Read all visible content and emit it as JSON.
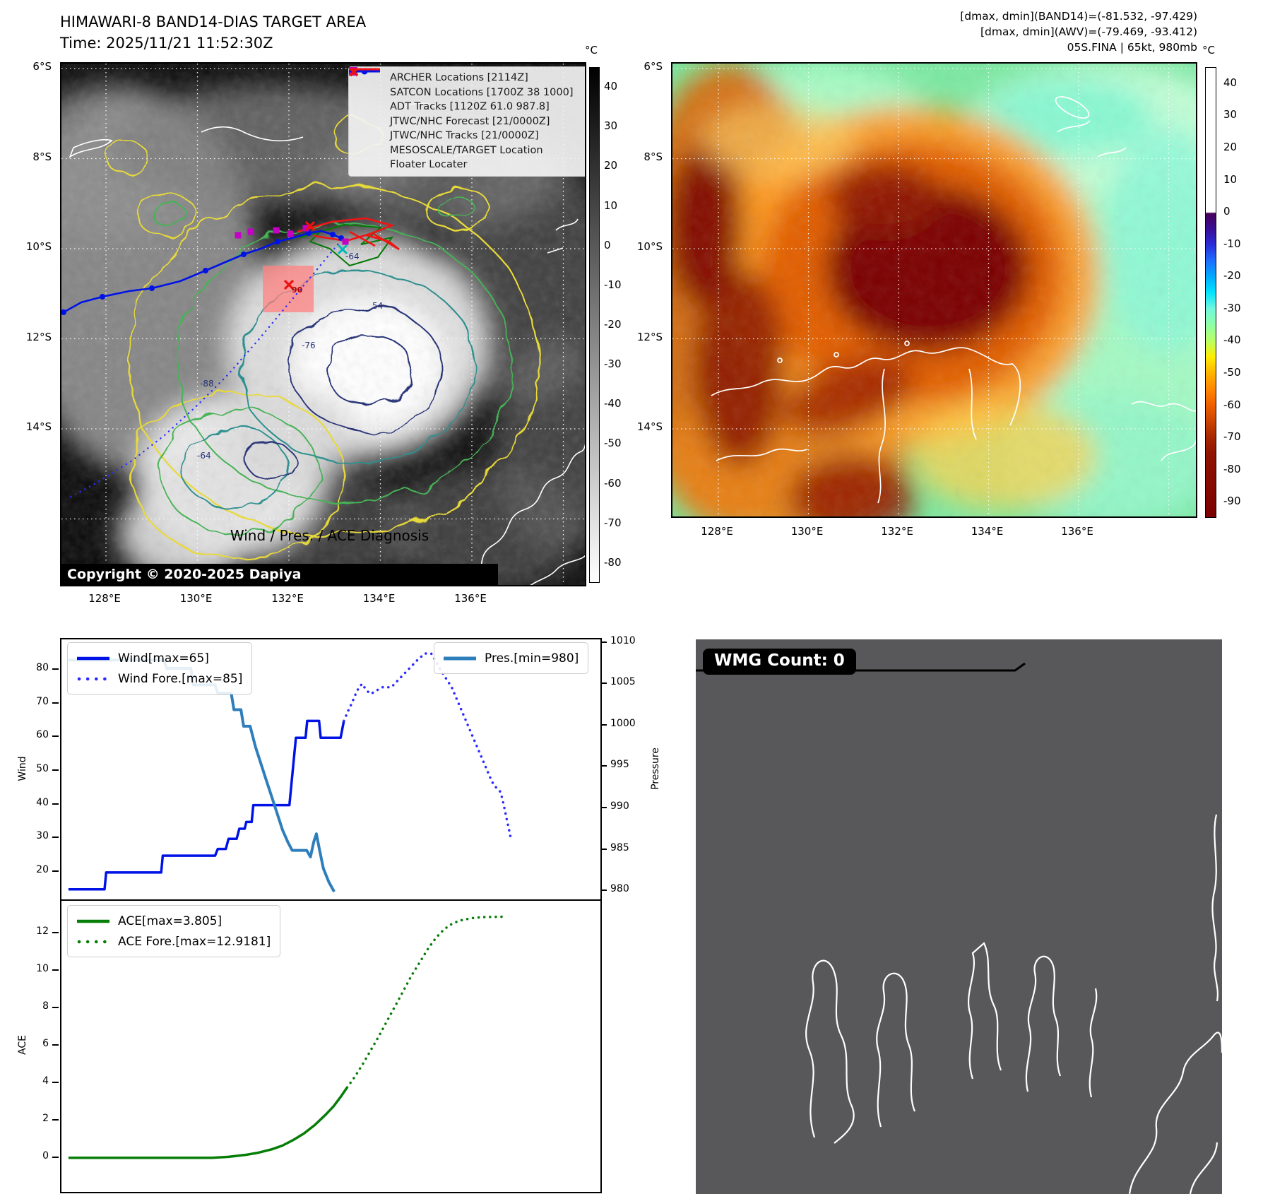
{
  "colors": {
    "wind": "#0013e6",
    "wind_forecast": "#2a2aff",
    "pressure": "#2e7ebc",
    "ace": "#067d06",
    "archer": "#c400c4",
    "satcon": "#00b8b8",
    "adt_track": "#067806",
    "mesoscale": "#ee1111",
    "floater": "#f01414",
    "wmg_panel": "#58585a"
  },
  "tl": {
    "title": "HIMAWARI-8 BAND14-DIAS TARGET AREA",
    "subtitle": "Time: 2025/11/21 11:52:30Z",
    "copyright": "Copyright © 2020-2025 Dapiya",
    "target_label": "90",
    "colorbar_unit": "°C",
    "colorbar_ticks": [
      40,
      30,
      20,
      10,
      0,
      -10,
      -20,
      -30,
      -40,
      -50,
      -60,
      -70,
      -80
    ],
    "lat_ticks": [
      "6°S",
      "8°S",
      "10°S",
      "12°S",
      "14°S"
    ],
    "lon_ticks": [
      "128°E",
      "130°E",
      "132°E",
      "134°E",
      "136°E"
    ],
    "contour_labels": [
      "-64",
      "54",
      "-76",
      "-88",
      "-64"
    ],
    "legend": [
      {
        "symbol": "archer-square",
        "label": "ARCHER Locations [2114Z]"
      },
      {
        "symbol": "satcon-x",
        "label": "SATCON Locations [1700Z 38 1000]"
      },
      {
        "symbol": "adt-line",
        "label": "ADT Tracks [1120Z 61.0 987.8]"
      },
      {
        "symbol": "forecast-dotted",
        "label": "JTWC/NHC Forecast [21/0000Z]"
      },
      {
        "symbol": "track-line-dot",
        "label": "JTWC/NHC Tracks [21/0000Z]"
      },
      {
        "symbol": "mesoscale-x",
        "label": "MESOSCALE/TARGET Location"
      },
      {
        "symbol": "floater-line",
        "label": "Floater Locater"
      }
    ]
  },
  "tr": {
    "header": [
      "[dmax, dmin](BAND14)=(-81.532, -97.429)",
      "[dmax, dmin](AWV)=(-79.469, -93.412)",
      "05S.FINA | 65kt, 980mb"
    ],
    "colorbar_unit": "°C",
    "colorbar_ticks": [
      40,
      30,
      20,
      10,
      0,
      -10,
      -20,
      -30,
      -40,
      -50,
      -60,
      -70,
      -80,
      -90
    ],
    "lat_ticks": [
      "6°S",
      "8°S",
      "10°S",
      "12°S",
      "14°S"
    ],
    "lon_ticks": [
      "128°E",
      "130°E",
      "132°E",
      "134°E",
      "136°E"
    ]
  },
  "charts": {
    "title": "Wind / Pres. / ACE Diagnosis",
    "wind_ylabel": "Wind",
    "pressure_ylabel": "Pressure",
    "ace_ylabel": "ACE"
  },
  "wmg": {
    "label": "WMG Count: 0"
  },
  "chart_data": [
    {
      "type": "line",
      "title": "Wind / Pres. / ACE Diagnosis",
      "xlabel": "",
      "ylabel": "Wind",
      "y2label": "Pressure",
      "xlim": [
        0,
        100
      ],
      "ylim": [
        11.6,
        89.2
      ],
      "y2lim": [
        978.9,
        1010.5
      ],
      "yticks": [
        20,
        30,
        40,
        50,
        60,
        70,
        80
      ],
      "y2ticks": [
        980,
        985,
        990,
        995,
        1000,
        1005,
        1010
      ],
      "grid": false,
      "legend_position": "upper-left and upper-right",
      "series": [
        {
          "name": "Wind[max=65]",
          "axis": "y",
          "style": "solid",
          "color": "#0013e6",
          "width": 3.5,
          "points": [
            [
              1.3,
              15
            ],
            [
              8,
              15
            ],
            [
              8.3,
              20
            ],
            [
              18.5,
              20
            ],
            [
              18.8,
              25
            ],
            [
              28.5,
              25
            ],
            [
              29,
              27
            ],
            [
              30.5,
              27
            ],
            [
              31,
              30
            ],
            [
              32.5,
              30
            ],
            [
              33,
              33
            ],
            [
              34,
              33
            ],
            [
              34.3,
              35
            ],
            [
              35.3,
              35
            ],
            [
              35.6,
              40
            ],
            [
              42.3,
              40
            ],
            [
              43.5,
              60
            ],
            [
              45.3,
              60
            ],
            [
              45.6,
              65
            ],
            [
              47.8,
              65
            ],
            [
              48.1,
              60
            ],
            [
              51.8,
              60
            ],
            [
              52.4,
              65
            ]
          ]
        },
        {
          "name": "Wind Fore.[max=85]",
          "axis": "y",
          "style": "dotted",
          "color": "#2a2aff",
          "width": 3.5,
          "points": [
            [
              52.4,
              65
            ],
            [
              53.2,
              68
            ],
            [
              53.8,
              70
            ],
            [
              54.6,
              73
            ],
            [
              55.2,
              75
            ],
            [
              55.8,
              76
            ],
            [
              56.6,
              74
            ],
            [
              57.4,
              73
            ],
            [
              58.4,
              74
            ],
            [
              59.6,
              75
            ],
            [
              61.2,
              75
            ],
            [
              62.4,
              77
            ],
            [
              63.6,
              79
            ],
            [
              64.8,
              81
            ],
            [
              66,
              83
            ],
            [
              67.4,
              85
            ],
            [
              68.6,
              85
            ],
            [
              69.4,
              83
            ],
            [
              70,
              81
            ],
            [
              70.8,
              79
            ],
            [
              71.6,
              77
            ],
            [
              72.4,
              75
            ],
            [
              73.2,
              72
            ],
            [
              74,
              69
            ],
            [
              74.8,
              66
            ],
            [
              75.6,
              63
            ],
            [
              76.4,
              60
            ],
            [
              77.2,
              57
            ],
            [
              78,
              54
            ],
            [
              78.8,
              51
            ],
            [
              79.6,
              48
            ],
            [
              80.2,
              46
            ],
            [
              80.8,
              45
            ],
            [
              81.4,
              44
            ],
            [
              81.8,
              42
            ],
            [
              82.2,
              39
            ],
            [
              82.6,
              36
            ],
            [
              83,
              33
            ],
            [
              83.4,
              30
            ]
          ]
        },
        {
          "name": "Pres.[min=980]",
          "axis": "y2",
          "style": "solid",
          "color": "#2e7ebc",
          "width": 4,
          "points": [
            [
              1.3,
              1008
            ],
            [
              19,
              1008
            ],
            [
              19.5,
              1007
            ],
            [
              24,
              1007
            ],
            [
              24.5,
              1005
            ],
            [
              28.5,
              1005
            ],
            [
              29,
              1004
            ],
            [
              31.5,
              1004
            ],
            [
              32,
              1002
            ],
            [
              33.3,
              1002
            ],
            [
              33.8,
              1000
            ],
            [
              35,
              1000
            ],
            [
              36,
              997.5
            ],
            [
              37,
              995.5
            ],
            [
              38,
              993.5
            ],
            [
              39,
              991.5
            ],
            [
              40,
              989.5
            ],
            [
              41,
              987.5
            ],
            [
              42,
              986
            ],
            [
              42.8,
              985
            ],
            [
              45.5,
              985
            ],
            [
              46.2,
              984.2
            ],
            [
              46.8,
              986
            ],
            [
              47.3,
              987
            ],
            [
              47.9,
              985
            ],
            [
              48.6,
              982.8
            ],
            [
              49.6,
              981.2
            ],
            [
              50.6,
              980
            ]
          ]
        }
      ]
    },
    {
      "type": "line",
      "title": "",
      "xlabel": "",
      "ylabel": "ACE",
      "xlim": [
        0,
        100
      ],
      "ylim": [
        -1.77,
        13.77
      ],
      "yticks": [
        0,
        2,
        4,
        6,
        8,
        10,
        12
      ],
      "grid": false,
      "legend_position": "upper-left",
      "series": [
        {
          "name": "ACE[max=3.805]",
          "axis": "y",
          "style": "solid",
          "color": "#067d06",
          "width": 3.5,
          "points": [
            [
              1.3,
              0.05
            ],
            [
              28,
              0.05
            ],
            [
              31,
              0.1
            ],
            [
              34,
              0.2
            ],
            [
              36.5,
              0.32
            ],
            [
              39,
              0.5
            ],
            [
              41,
              0.7
            ],
            [
              43,
              1.0
            ],
            [
              45,
              1.35
            ],
            [
              47,
              1.8
            ],
            [
              49,
              2.35
            ],
            [
              50.5,
              2.8
            ],
            [
              51.8,
              3.3
            ],
            [
              53,
              3.805
            ]
          ]
        },
        {
          "name": "ACE Fore.[max=12.9181]",
          "axis": "y",
          "style": "dotted",
          "color": "#067d06",
          "width": 3.5,
          "points": [
            [
              53,
              3.805
            ],
            [
              54.5,
              4.4
            ],
            [
              56,
              5.1
            ],
            [
              57.5,
              5.85
            ],
            [
              59,
              6.6
            ],
            [
              60.5,
              7.4
            ],
            [
              62,
              8.2
            ],
            [
              63.5,
              9.0
            ],
            [
              65,
              9.8
            ],
            [
              66.5,
              10.5
            ],
            [
              68,
              11.2
            ],
            [
              69.5,
              11.8
            ],
            [
              71,
              12.25
            ],
            [
              72.5,
              12.55
            ],
            [
              74,
              12.72
            ],
            [
              76,
              12.84
            ],
            [
              78,
              12.9
            ],
            [
              82,
              12.92
            ]
          ]
        }
      ]
    }
  ]
}
